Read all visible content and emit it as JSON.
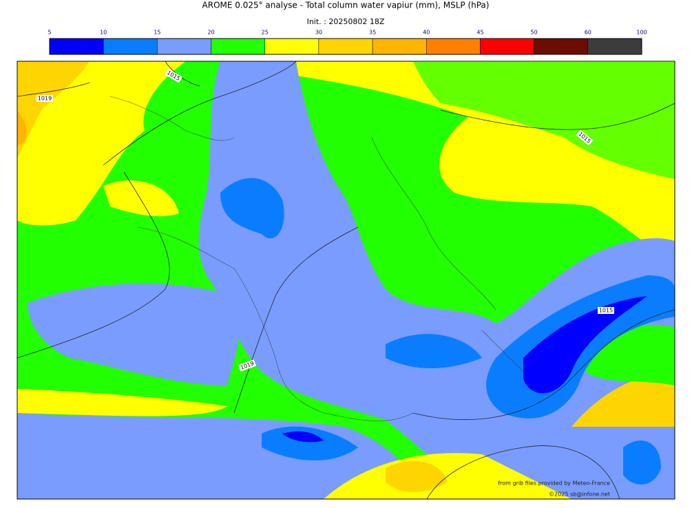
{
  "title": "AROME 0.025° analyse - Total column water vapiur (mm), MSLP (hPa)",
  "subtitle": "Init. : 20250802 18Z",
  "colorbar": {
    "ticks": [
      5,
      10,
      15,
      20,
      25,
      30,
      35,
      40,
      45,
      50,
      60,
      100
    ],
    "colors": [
      "#0000ff",
      "#0a7dff",
      "#7a9cff",
      "#22ff00",
      "#ffff00",
      "#ffd500",
      "#ffb400",
      "#ff8000",
      "#ff0000",
      "#6b0d00",
      "#3c3c3c"
    ]
  },
  "isobar_labels": [
    "1019",
    "1015",
    "1015",
    "1019",
    "1015"
  ],
  "credits": [
    "from grib files provided by Meteo-France",
    "©2025 sb@infone.net"
  ]
}
